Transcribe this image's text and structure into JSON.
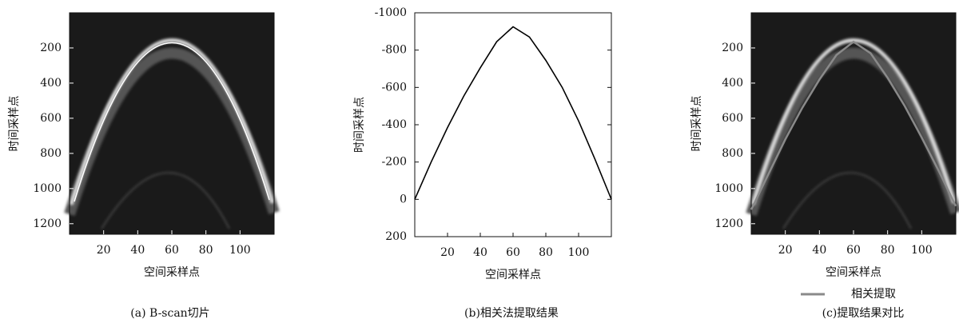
{
  "chart_data": [
    {
      "type": "image",
      "caption": "(a) B-scan切片",
      "xlabel": "空间采样点",
      "ylabel": "时间采样点",
      "xlim": [
        0,
        120
      ],
      "xticks": [
        20,
        40,
        60,
        80,
        100
      ],
      "ylim": [
        0,
        1260
      ],
      "y_inverted": true,
      "yticks": [
        200,
        400,
        600,
        800,
        1000,
        1200
      ]
    },
    {
      "type": "line",
      "caption": "(b)相关法提取结果",
      "xlabel": "空间采样点",
      "ylabel": "时间采样点",
      "x": [
        0,
        10,
        20,
        30,
        40,
        50,
        60,
        70,
        80,
        90,
        100,
        110,
        120
      ],
      "series": [
        {
          "color": "#000000",
          "values": [
            0,
            -200,
            -385,
            -555,
            -705,
            -845,
            -925,
            -870,
            -745,
            -600,
            -420,
            -215,
            0
          ]
        }
      ],
      "xlim": [
        0,
        120
      ],
      "xticks": [
        20,
        40,
        60,
        80,
        100
      ],
      "ylim": [
        -1000,
        200
      ],
      "y_inverted": true,
      "yticks": [
        -1000,
        -800,
        -600,
        -400,
        -200,
        0,
        200
      ]
    },
    {
      "type": "image",
      "caption": "(c)提取结果对比",
      "xlabel": "空间采样点",
      "ylabel": "时间采样点",
      "x": [
        0,
        10,
        20,
        30,
        40,
        50,
        60,
        70,
        80,
        90,
        100,
        110,
        120
      ],
      "series": [
        {
          "name": "相关提取",
          "color": "#8a8a8a",
          "values": [
            1120,
            920,
            720,
            540,
            380,
            240,
            165,
            230,
            370,
            530,
            710,
            900,
            1100
          ]
        }
      ],
      "xlim": [
        0,
        120
      ],
      "xticks": [
        20,
        40,
        60,
        80,
        100
      ],
      "ylim": [
        0,
        1260
      ],
      "y_inverted": true,
      "yticks": [
        200,
        400,
        600,
        800,
        1000,
        1200
      ]
    }
  ]
}
